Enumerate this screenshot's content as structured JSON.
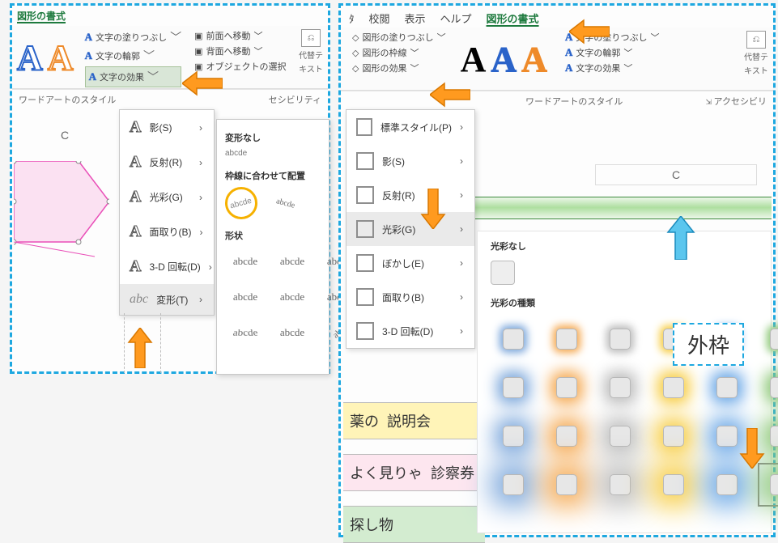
{
  "left": {
    "tab_active": "図形の書式",
    "fill": "文字の塗りつぶし",
    "outline": "文字の輪郭",
    "effectsCmd": "文字の効果",
    "effects_bg": "#d9e6d7",
    "arrange1": "前面へ移動",
    "arrange2": "背面へ移動",
    "arrange3": "オブジェクトの選択",
    "alt1": "代替テ",
    "alt2": "キスト",
    "group_wordart": "ワードアートのスタイル",
    "group_acc": "セシビリティ",
    "col_C": "C",
    "menu": {
      "shadow": "影(S)",
      "reflection": "反射(R)",
      "glow": "光彩(G)",
      "bevel": "面取り(B)",
      "rot3d": "3-D 回転(D)",
      "transform": "変形(T)"
    },
    "transform": {
      "none_h": "変形なし",
      "none_sample": "abcde",
      "fit_h": "枠線に合わせて配置",
      "shape_h": "形状",
      "sample": "abcde"
    }
  },
  "right": {
    "tabs": [
      "ﾀ",
      "校閲",
      "表示",
      "ヘルプ"
    ],
    "tab_active": "図形の書式",
    "shapeFill": "図形の塗りつぶし",
    "shapeOutline": "図形の枠線",
    "shapeEffects": "図形の効果",
    "fillTxt": "文字の塗りつぶし",
    "outlineTxt": "文字の輪郭",
    "effectsTxt": "文字の効果",
    "alt1": "代替テ",
    "alt2": "キスト",
    "group_wordart": "ワードアートのスタイル",
    "group_acc": "アクセシビリ",
    "col_C": "C",
    "menu": {
      "preset": "標準スタイル(P)",
      "shadow": "影(S)",
      "reflection": "反射(R)",
      "glow": "光彩(G)",
      "soft": "ぼかし(E)",
      "bevel": "面取り(B)",
      "rot3d": "3-D 回転(D)"
    },
    "sheet": {
      "row1_a": "薬の",
      "row1_b": "説明会",
      "row1_bg": "#fff4b8",
      "row2_a": "よく見りゃ",
      "row2_b": "診察券",
      "row2_bg": "#fde6ef",
      "row3": "探し物",
      "row3_bg": "#d3ecd0"
    },
    "glow": {
      "none_h": "光彩なし",
      "type_h": "光彩の種類",
      "gaiwaku": "外枠",
      "colors_row": [
        "#7aa6db",
        "#f5a84f",
        "#bcbcbc",
        "#f7cc3f",
        "#6aa7e6",
        "#8fc97a"
      ],
      "intensities": [
        10,
        18,
        26,
        34
      ]
    }
  },
  "colors": {
    "dashed_border": "#1ea8e0",
    "arrow_orange": "#ff9a1f",
    "arrow_orange_stroke": "#d97800",
    "arrow_blue": "#5bc6ee",
    "arrow_blue_stroke": "#1b8bbd"
  }
}
